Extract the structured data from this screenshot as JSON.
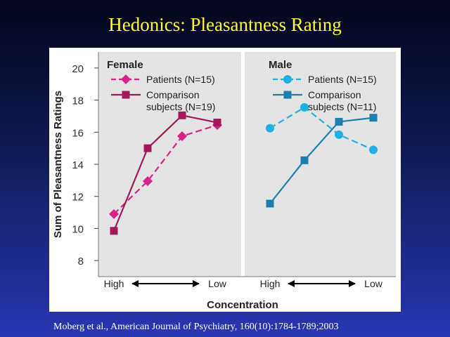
{
  "slide": {
    "title": "Hedonics: Pleasantness Rating",
    "citation": "Moberg et al., American Journal of Psychiatry, 160(10):1784-1789;2003"
  },
  "colors": {
    "female": "#a3185a",
    "female_patients": "#d9228a",
    "male_patients": "#1eb0e0",
    "male_comparison": "#1a7fae",
    "panel_bg": "#e4e4e4",
    "axis": "#777777"
  },
  "chart_data": {
    "type": "line",
    "ylabel": "Sum of Pleasantness Ratings",
    "xlabel": "Concentration",
    "ylim": [
      7,
      21
    ],
    "yticks": [
      8,
      10,
      12,
      14,
      16,
      18,
      20
    ],
    "x_tick_labels": {
      "left": "High",
      "right": "Low"
    },
    "categories": [
      1,
      2,
      3,
      4
    ],
    "panels": [
      {
        "title": "Female",
        "series": [
          {
            "name": "Patients (N=15)",
            "marker": "diamond",
            "dash": true,
            "values": [
              10.9,
              12.95,
              15.75,
              16.45
            ]
          },
          {
            "name": "Comparison subjects (N=19)",
            "name_line1": "Comparison",
            "name_line2": "subjects (N=19)",
            "marker": "square",
            "dash": false,
            "values": [
              9.85,
              15.0,
              17.05,
              16.6
            ]
          }
        ]
      },
      {
        "title": "Male",
        "series": [
          {
            "name": "Patients (N=15)",
            "marker": "circle",
            "dash": true,
            "values": [
              16.25,
              17.55,
              15.85,
              14.9
            ]
          },
          {
            "name": "Comparison subjects (N=11)",
            "name_line1": "Comparison",
            "name_line2": "subjects (N=11)",
            "marker": "square",
            "dash": false,
            "values": [
              11.55,
              14.25,
              16.65,
              16.9
            ]
          }
        ]
      }
    ]
  }
}
